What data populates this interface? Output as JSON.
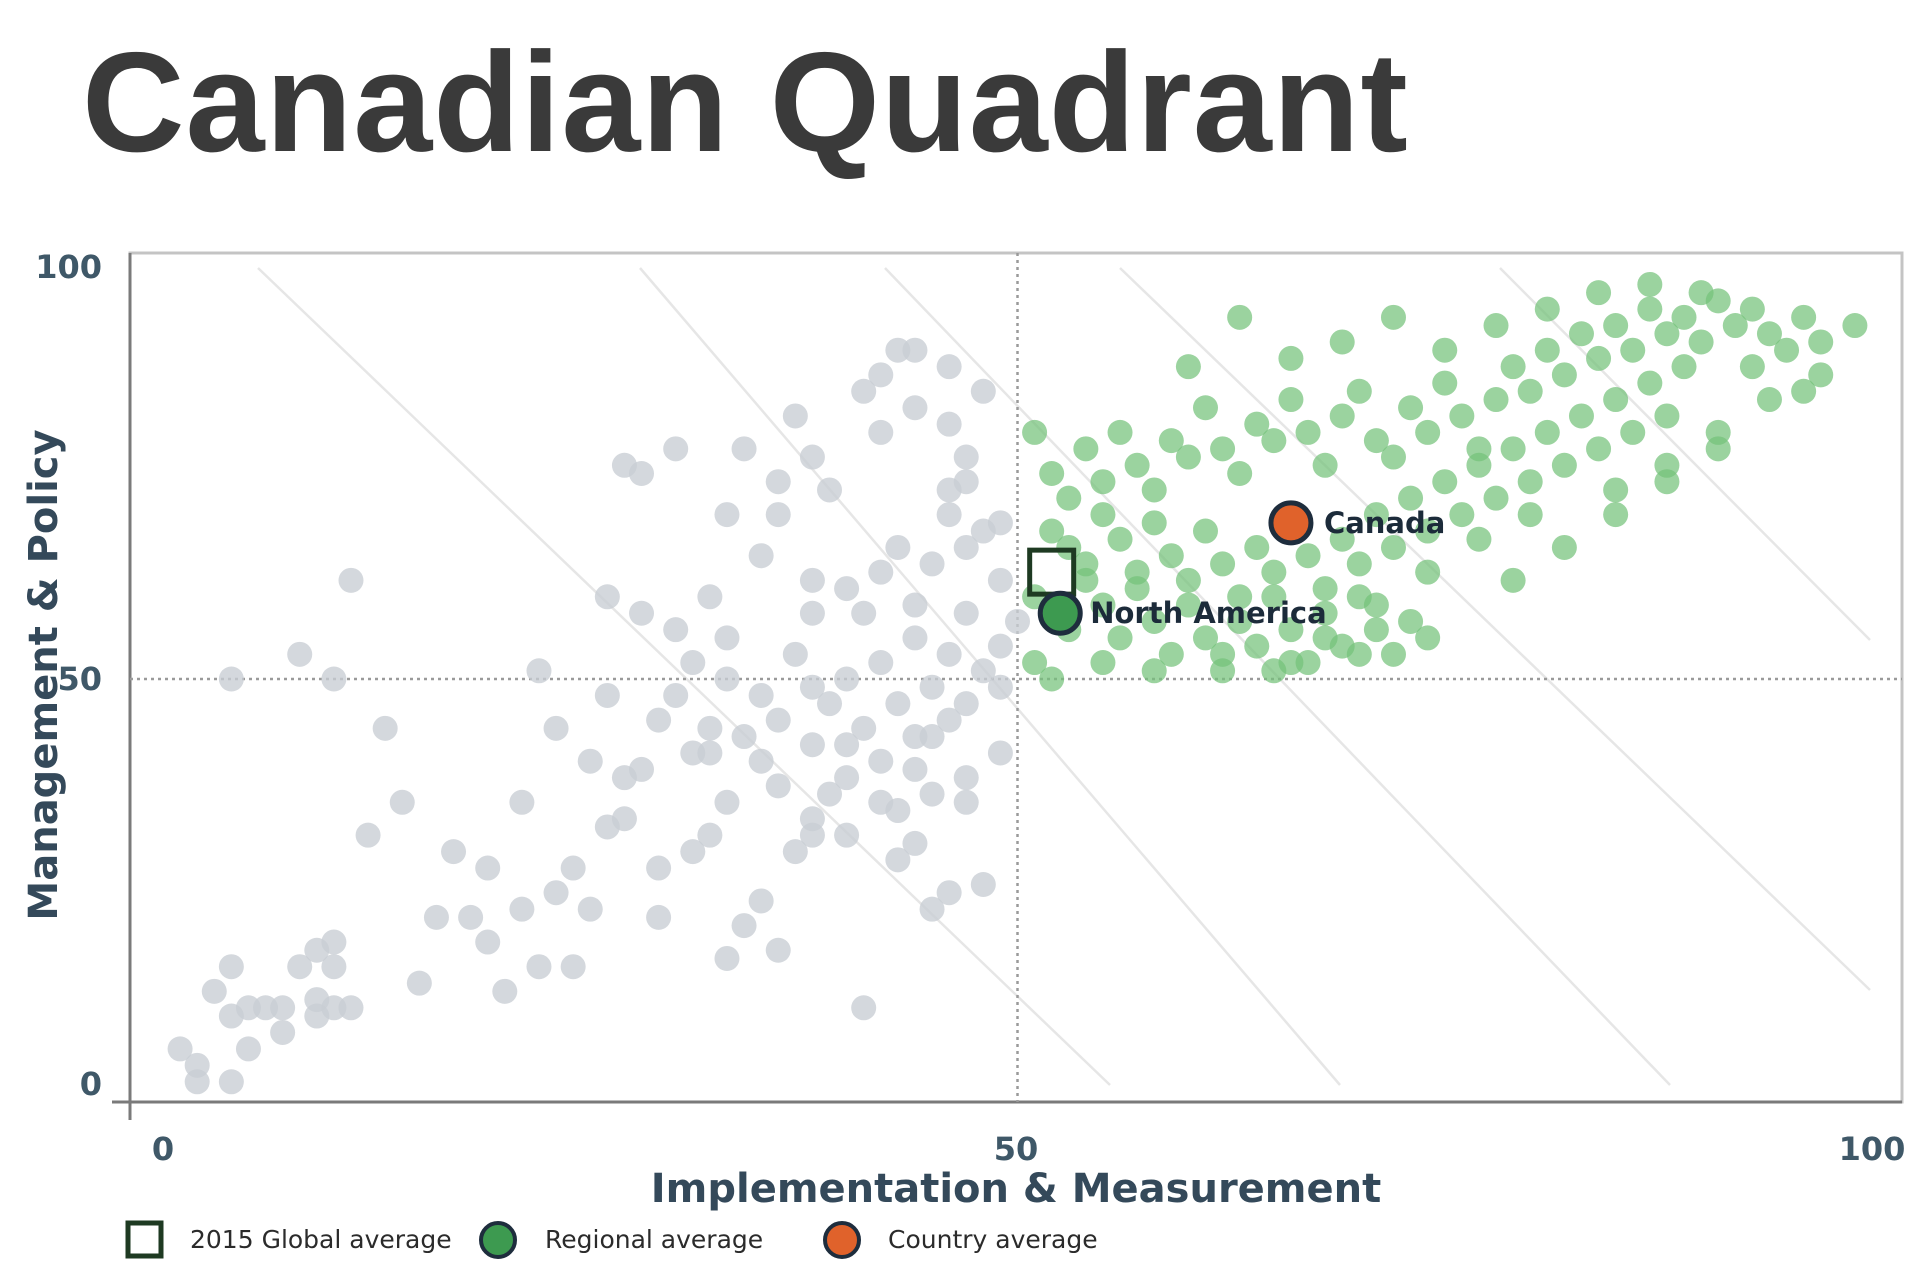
{
  "title": "Canadian Quadrant",
  "chart_data": {
    "type": "scatter",
    "title": "Canadian Quadrant",
    "xlabel": "Implementation & Measurement",
    "ylabel": "Management & Policy",
    "xlim": [
      0,
      100
    ],
    "ylim": [
      0,
      100
    ],
    "xticks": [
      "0",
      "50",
      "100"
    ],
    "yticks": [
      "0",
      "50",
      "100"
    ],
    "reference_lines": {
      "x": 50,
      "y": 50
    },
    "colors": {
      "global": "#c8cdd3",
      "high_both": "#74c27a",
      "regional": "#3d9a50",
      "country": "#e0622b",
      "outline": "#1e2d3d",
      "global_average_box": "#1e3a22"
    },
    "series": [
      {
        "name": "",
        "role": "global countries (below 50 on either axis)",
        "points": [
          [
            1,
            5
          ],
          [
            2,
            3
          ],
          [
            2,
            1
          ],
          [
            3,
            12
          ],
          [
            4,
            15
          ],
          [
            4,
            9
          ],
          [
            4,
            1
          ],
          [
            5,
            10
          ],
          [
            5,
            5
          ],
          [
            6,
            10
          ],
          [
            7,
            10
          ],
          [
            7,
            7
          ],
          [
            8,
            15
          ],
          [
            9,
            17
          ],
          [
            9,
            11
          ],
          [
            9,
            9
          ],
          [
            10,
            15
          ],
          [
            10,
            18
          ],
          [
            10,
            10
          ],
          [
            11,
            10
          ],
          [
            4,
            50
          ],
          [
            10,
            50
          ],
          [
            8,
            53
          ],
          [
            11,
            62
          ],
          [
            12,
            31
          ],
          [
            13,
            44
          ],
          [
            14,
            35
          ],
          [
            15,
            13
          ],
          [
            16,
            21
          ],
          [
            17,
            29
          ],
          [
            18,
            21
          ],
          [
            19,
            27
          ],
          [
            19,
            18
          ],
          [
            20,
            12
          ],
          [
            21,
            22
          ],
          [
            21,
            35
          ],
          [
            22,
            51
          ],
          [
            22,
            15
          ],
          [
            23,
            24
          ],
          [
            24,
            27
          ],
          [
            24,
            15
          ],
          [
            25,
            22
          ],
          [
            26,
            32
          ],
          [
            27,
            38
          ],
          [
            28,
            39
          ],
          [
            29,
            21
          ],
          [
            30,
            48
          ],
          [
            31,
            41
          ],
          [
            32,
            31
          ],
          [
            32,
            41
          ],
          [
            33,
            16
          ],
          [
            34,
            20
          ],
          [
            35,
            23
          ],
          [
            36,
            17
          ],
          [
            37,
            29
          ],
          [
            38,
            31
          ],
          [
            38,
            42
          ],
          [
            39,
            36
          ],
          [
            40,
            31
          ],
          [
            41,
            10
          ],
          [
            42,
            35
          ],
          [
            43,
            28
          ],
          [
            44,
            30
          ],
          [
            45,
            22
          ],
          [
            46,
            24
          ],
          [
            47,
            35
          ],
          [
            48,
            25
          ],
          [
            49,
            41
          ],
          [
            26,
            60
          ],
          [
            28,
            58
          ],
          [
            30,
            56
          ],
          [
            32,
            60
          ],
          [
            33,
            55
          ],
          [
            35,
            65
          ],
          [
            36,
            70
          ],
          [
            38,
            62
          ],
          [
            38,
            58
          ],
          [
            40,
            61
          ],
          [
            41,
            58
          ],
          [
            42,
            63
          ],
          [
            43,
            66
          ],
          [
            44,
            59
          ],
          [
            45,
            64
          ],
          [
            46,
            70
          ],
          [
            47,
            66
          ],
          [
            48,
            68
          ],
          [
            49,
            62
          ],
          [
            27,
            76
          ],
          [
            28,
            75
          ],
          [
            30,
            78
          ],
          [
            33,
            70
          ],
          [
            34,
            78
          ],
          [
            36,
            74
          ],
          [
            37,
            82
          ],
          [
            38,
            77
          ],
          [
            41,
            85
          ],
          [
            42,
            80
          ],
          [
            44,
            83
          ],
          [
            46,
            81
          ],
          [
            47,
            77
          ],
          [
            39,
            73
          ],
          [
            31,
            52
          ],
          [
            33,
            50
          ],
          [
            35,
            48
          ],
          [
            36,
            45
          ],
          [
            37,
            53
          ],
          [
            39,
            47
          ],
          [
            40,
            50
          ],
          [
            41,
            44
          ],
          [
            42,
            52
          ],
          [
            43,
            47
          ],
          [
            44,
            55
          ],
          [
            45,
            49
          ],
          [
            46,
            53
          ],
          [
            47,
            58
          ],
          [
            48,
            51
          ],
          [
            49,
            49
          ],
          [
            44,
            43
          ],
          [
            45,
            43
          ],
          [
            46,
            45
          ],
          [
            47,
            47
          ],
          [
            49,
            54
          ],
          [
            50,
            57
          ],
          [
            43,
            90
          ],
          [
            42,
            87
          ],
          [
            44,
            90
          ],
          [
            46,
            88
          ],
          [
            48,
            85
          ],
          [
            46,
            73
          ],
          [
            47,
            74
          ],
          [
            49,
            69
          ],
          [
            38,
            49
          ],
          [
            40,
            42
          ],
          [
            42,
            40
          ],
          [
            44,
            39
          ],
          [
            35,
            40
          ],
          [
            33,
            35
          ],
          [
            31,
            29
          ],
          [
            29,
            27
          ],
          [
            27,
            33
          ],
          [
            25,
            40
          ],
          [
            23,
            44
          ],
          [
            26,
            48
          ],
          [
            29,
            45
          ],
          [
            32,
            44
          ],
          [
            34,
            43
          ],
          [
            36,
            37
          ],
          [
            38,
            33
          ],
          [
            40,
            38
          ],
          [
            43,
            34
          ],
          [
            45,
            36
          ],
          [
            47,
            38
          ]
        ]
      },
      {
        "name": "",
        "role": "countries at or above 50 on both axes",
        "points": [
          [
            51,
            80
          ],
          [
            52,
            75
          ],
          [
            53,
            72
          ],
          [
            54,
            78
          ],
          [
            55,
            74
          ],
          [
            56,
            80
          ],
          [
            57,
            76
          ],
          [
            58,
            73
          ],
          [
            59,
            79
          ],
          [
            60,
            77
          ],
          [
            61,
            83
          ],
          [
            62,
            78
          ],
          [
            63,
            75
          ],
          [
            64,
            81
          ],
          [
            65,
            79
          ],
          [
            66,
            84
          ],
          [
            67,
            80
          ],
          [
            68,
            76
          ],
          [
            69,
            82
          ],
          [
            70,
            85
          ],
          [
            71,
            79
          ],
          [
            72,
            77
          ],
          [
            73,
            83
          ],
          [
            74,
            80
          ],
          [
            75,
            86
          ],
          [
            76,
            82
          ],
          [
            77,
            78
          ],
          [
            78,
            84
          ],
          [
            79,
            88
          ],
          [
            80,
            85
          ],
          [
            81,
            90
          ],
          [
            82,
            87
          ],
          [
            83,
            92
          ],
          [
            84,
            89
          ],
          [
            85,
            93
          ],
          [
            86,
            90
          ],
          [
            87,
            95
          ],
          [
            88,
            92
          ],
          [
            89,
            94
          ],
          [
            90,
            91
          ],
          [
            91,
            96
          ],
          [
            92,
            93
          ],
          [
            93,
            95
          ],
          [
            94,
            92
          ],
          [
            95,
            90
          ],
          [
            96,
            94
          ],
          [
            97,
            91
          ],
          [
            52,
            68
          ],
          [
            53,
            66
          ],
          [
            54,
            64
          ],
          [
            55,
            70
          ],
          [
            56,
            67
          ],
          [
            57,
            63
          ],
          [
            58,
            69
          ],
          [
            59,
            65
          ],
          [
            60,
            62
          ],
          [
            61,
            68
          ],
          [
            62,
            64
          ],
          [
            63,
            60
          ],
          [
            64,
            66
          ],
          [
            65,
            63
          ],
          [
            66,
            69
          ],
          [
            67,
            65
          ],
          [
            68,
            61
          ],
          [
            69,
            67
          ],
          [
            70,
            64
          ],
          [
            71,
            70
          ],
          [
            72,
            66
          ],
          [
            73,
            72
          ],
          [
            74,
            68
          ],
          [
            75,
            74
          ],
          [
            76,
            70
          ],
          [
            77,
            76
          ],
          [
            78,
            72
          ],
          [
            79,
            78
          ],
          [
            80,
            74
          ],
          [
            81,
            80
          ],
          [
            82,
            76
          ],
          [
            83,
            82
          ],
          [
            84,
            78
          ],
          [
            85,
            84
          ],
          [
            86,
            80
          ],
          [
            87,
            86
          ],
          [
            88,
            82
          ],
          [
            89,
            88
          ],
          [
            51,
            60
          ],
          [
            52,
            58
          ],
          [
            53,
            56
          ],
          [
            54,
            62
          ],
          [
            55,
            59
          ],
          [
            56,
            55
          ],
          [
            57,
            61
          ],
          [
            58,
            57
          ],
          [
            59,
            53
          ],
          [
            60,
            59
          ],
          [
            61,
            55
          ],
          [
            62,
            51
          ],
          [
            63,
            57
          ],
          [
            64,
            54
          ],
          [
            65,
            60
          ],
          [
            66,
            56
          ],
          [
            67,
            52
          ],
          [
            68,
            58
          ],
          [
            69,
            54
          ],
          [
            70,
            60
          ],
          [
            71,
            56
          ],
          [
            72,
            53
          ],
          [
            73,
            57
          ],
          [
            74,
            55
          ],
          [
            51,
            52
          ],
          [
            52,
            50
          ],
          [
            55,
            52
          ],
          [
            58,
            51
          ],
          [
            62,
            53
          ],
          [
            66,
            52
          ],
          [
            70,
            53
          ],
          [
            60,
            88
          ],
          [
            63,
            94
          ],
          [
            66,
            89
          ],
          [
            69,
            91
          ],
          [
            72,
            94
          ],
          [
            75,
            90
          ],
          [
            78,
            93
          ],
          [
            81,
            95
          ],
          [
            84,
            97
          ],
          [
            87,
            98
          ],
          [
            90,
            97
          ],
          [
            93,
            88
          ],
          [
            96,
            85
          ],
          [
            99,
            93
          ],
          [
            85,
            73
          ],
          [
            88,
            76
          ],
          [
            91,
            80
          ],
          [
            94,
            84
          ],
          [
            97,
            87
          ],
          [
            80,
            70
          ],
          [
            77,
            67
          ],
          [
            74,
            63
          ],
          [
            71,
            59
          ],
          [
            68,
            55
          ],
          [
            65,
            51
          ],
          [
            79,
            62
          ],
          [
            82,
            66
          ],
          [
            85,
            70
          ],
          [
            88,
            74
          ],
          [
            91,
            78
          ]
        ]
      },
      {
        "name": "",
        "role": "2015 global average",
        "points": [
          [
            52,
            63
          ]
        ]
      },
      {
        "name": "North America",
        "role": "regional average",
        "points": [
          [
            52.5,
            58
          ]
        ]
      },
      {
        "name": "Canada",
        "role": "country average",
        "points": [
          [
            66,
            69
          ]
        ]
      }
    ],
    "legend": {
      "placement": "bottom-left",
      "items": [
        {
          "label": "2015 Global average",
          "marker": "square-outline"
        },
        {
          "label": "Regional average",
          "marker": "circle-green"
        },
        {
          "label": "Country average",
          "marker": "circle-orange"
        }
      ]
    },
    "grid": false
  }
}
